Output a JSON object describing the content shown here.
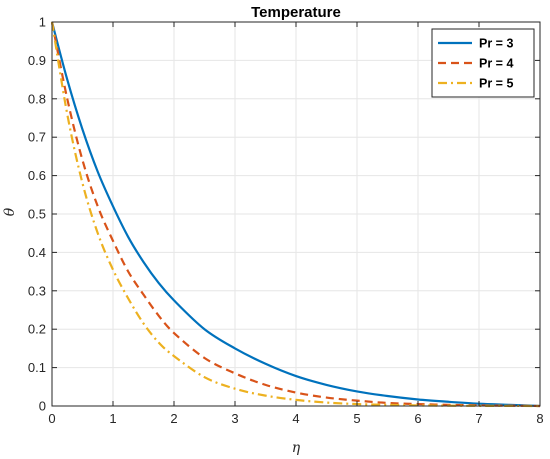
{
  "chart_data": {
    "type": "line",
    "title": "Temperature",
    "xlabel": "η",
    "ylabel": "θ",
    "xlim": [
      0,
      8
    ],
    "ylim": [
      0,
      1
    ],
    "xticks": [
      0,
      1,
      2,
      3,
      4,
      5,
      6,
      7,
      8
    ],
    "yticks": [
      0,
      0.1,
      0.2,
      0.3,
      0.4,
      0.5,
      0.6,
      0.7,
      0.8,
      0.9,
      1
    ],
    "grid": true,
    "legend_position": "top-right",
    "series": [
      {
        "name": "Pr = 3",
        "color": "#0072BD",
        "style": "solid",
        "x": [
          0,
          0.25,
          0.5,
          0.75,
          1,
          1.25,
          1.5,
          1.75,
          2,
          2.5,
          3,
          3.5,
          4,
          4.5,
          5,
          5.5,
          6,
          6.5,
          7,
          7.5,
          8
        ],
        "y": [
          1.0,
          0.85,
          0.72,
          0.61,
          0.52,
          0.44,
          0.375,
          0.32,
          0.275,
          0.2,
          0.15,
          0.11,
          0.078,
          0.055,
          0.038,
          0.026,
          0.017,
          0.011,
          0.006,
          0.003,
          0.0
        ]
      },
      {
        "name": "Pr = 4",
        "color": "#D95319",
        "style": "dashed",
        "x": [
          0,
          0.25,
          0.5,
          0.75,
          1,
          1.25,
          1.5,
          1.75,
          2,
          2.5,
          3,
          3.5,
          4,
          4.5,
          5,
          5.5,
          6,
          6.5,
          7,
          7.5,
          8
        ],
        "y": [
          1.0,
          0.8,
          0.64,
          0.52,
          0.43,
          0.35,
          0.29,
          0.235,
          0.19,
          0.125,
          0.085,
          0.055,
          0.035,
          0.022,
          0.014,
          0.008,
          0.005,
          0.003,
          0.0015,
          0.0007,
          0.0
        ]
      },
      {
        "name": "Pr = 5",
        "color": "#EDB120",
        "style": "dashdot",
        "x": [
          0,
          0.25,
          0.5,
          0.75,
          1,
          1.25,
          1.5,
          1.75,
          2,
          2.5,
          3,
          3.5,
          4,
          4.5,
          5,
          5.5,
          6,
          6.5,
          7,
          7.5,
          8
        ],
        "y": [
          1.0,
          0.76,
          0.58,
          0.45,
          0.355,
          0.28,
          0.215,
          0.165,
          0.13,
          0.075,
          0.045,
          0.027,
          0.016,
          0.009,
          0.005,
          0.003,
          0.0015,
          0.0008,
          0.0004,
          0.0002,
          0.0
        ]
      }
    ]
  }
}
